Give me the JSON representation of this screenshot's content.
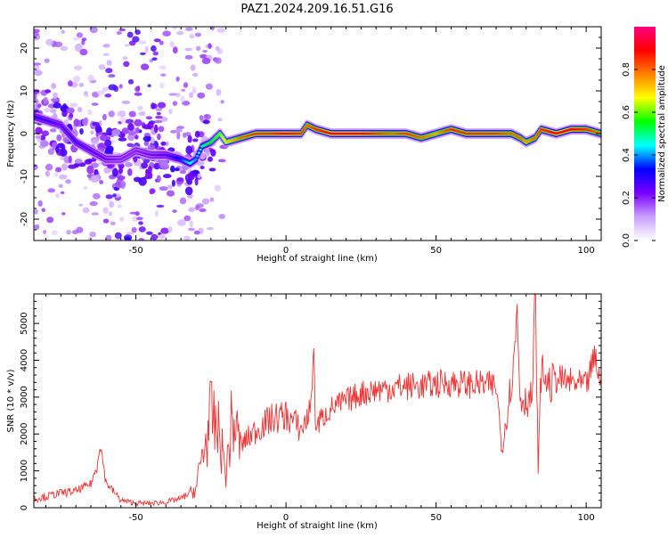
{
  "title": "PAZ1.2024.209.16.51.G16",
  "chart_data": [
    {
      "type": "heatmap",
      "xlabel": "Height of straight line (km)",
      "ylabel": "Frequency (Hz)",
      "xlim": [
        -84,
        105
      ],
      "ylim": [
        -25,
        25
      ],
      "xticks": [
        -50,
        0,
        50,
        100
      ],
      "yticks": [
        -20,
        -10,
        0,
        10,
        20
      ],
      "colorbar": {
        "label": "Normalized spectral amplitude",
        "range": [
          0.0,
          1.0
        ],
        "ticks": [
          0.0,
          0.2,
          0.4,
          0.6,
          0.8
        ],
        "colormap": [
          "#ffffff",
          "#c9a0ff",
          "#7a00ff",
          "#0000ff",
          "#00ffff",
          "#00ff00",
          "#ffff00",
          "#ff8000",
          "#ff0000",
          "#ff0080"
        ]
      },
      "ridge": {
        "x": [
          -84,
          -75,
          -70,
          -65,
          -60,
          -55,
          -50,
          -45,
          -40,
          -35,
          -32,
          -30,
          -28,
          -25,
          -22,
          -20,
          -15,
          -10,
          -5,
          0,
          5,
          7,
          10,
          15,
          20,
          25,
          30,
          35,
          40,
          45,
          50,
          55,
          60,
          65,
          70,
          75,
          78,
          80,
          83,
          85,
          90,
          95,
          100,
          105
        ],
        "y": [
          4,
          2,
          -2,
          -4,
          -6,
          -6,
          -4,
          -5,
          -5,
          -6,
          -7,
          -6,
          -3,
          -2,
          0,
          -2,
          -1,
          0,
          0,
          0,
          0,
          2,
          1,
          0,
          0,
          0,
          0,
          0,
          0,
          -1,
          0,
          1,
          0,
          0,
          0,
          0,
          -1,
          -2,
          -1,
          1,
          0,
          1,
          1,
          0
        ],
        "amplitude": [
          0.3,
          0.25,
          0.28,
          0.25,
          0.22,
          0.2,
          0.2,
          0.22,
          0.25,
          0.35,
          0.45,
          0.4,
          0.5,
          0.55,
          0.6,
          0.7,
          0.8,
          0.85,
          0.85,
          0.9,
          0.85,
          0.8,
          0.85,
          0.9,
          0.9,
          0.9,
          0.85,
          0.8,
          0.85,
          0.8,
          0.75,
          0.85,
          0.85,
          0.85,
          0.85,
          0.8,
          0.8,
          0.75,
          0.8,
          0.85,
          0.9,
          0.9,
          0.85,
          0.8
        ]
      },
      "noise_region": {
        "x_range": [
          -84,
          -20
        ],
        "y_range": [
          -25,
          25
        ],
        "column_x": -50
      }
    },
    {
      "type": "line",
      "xlabel": "Height of straight line (km)",
      "ylabel": "SNR (10 * v/v)",
      "xlim": [
        -84,
        105
      ],
      "ylim": [
        0,
        5800
      ],
      "xticks": [
        -50,
        0,
        50,
        100
      ],
      "yticks": [
        0,
        1000,
        2000,
        3000,
        4000,
        5000
      ],
      "color": "#ee3333",
      "series": [
        {
          "x": [
            -84,
            -80,
            -75,
            -70,
            -65,
            -63,
            -62,
            -60,
            -55,
            -50,
            -45,
            -40,
            -35,
            -30,
            -28,
            -26,
            -25,
            -22,
            -20,
            -18,
            -15,
            -10,
            -5,
            0,
            3,
            5,
            8,
            9,
            10,
            15,
            20,
            25,
            30,
            35,
            40,
            45,
            50,
            55,
            60,
            65,
            70,
            72,
            75,
            76,
            77,
            78,
            80,
            82,
            83,
            84,
            85,
            88,
            90,
            95,
            100,
            103,
            105
          ],
          "y": [
            250,
            300,
            400,
            450,
            650,
            1100,
            1800,
            700,
            200,
            120,
            120,
            150,
            250,
            500,
            1400,
            2000,
            2500,
            1900,
            900,
            2400,
            1700,
            2100,
            2400,
            2500,
            2300,
            2100,
            2600,
            4200,
            2200,
            2700,
            2900,
            3100,
            3200,
            3250,
            3300,
            3300,
            3350,
            3400,
            3350,
            3350,
            3300,
            1600,
            3400,
            4000,
            5400,
            3000,
            2900,
            3000,
            5800,
            1100,
            3700,
            3300,
            3500,
            3400,
            3300,
            4100,
            3300
          ]
        }
      ]
    }
  ]
}
